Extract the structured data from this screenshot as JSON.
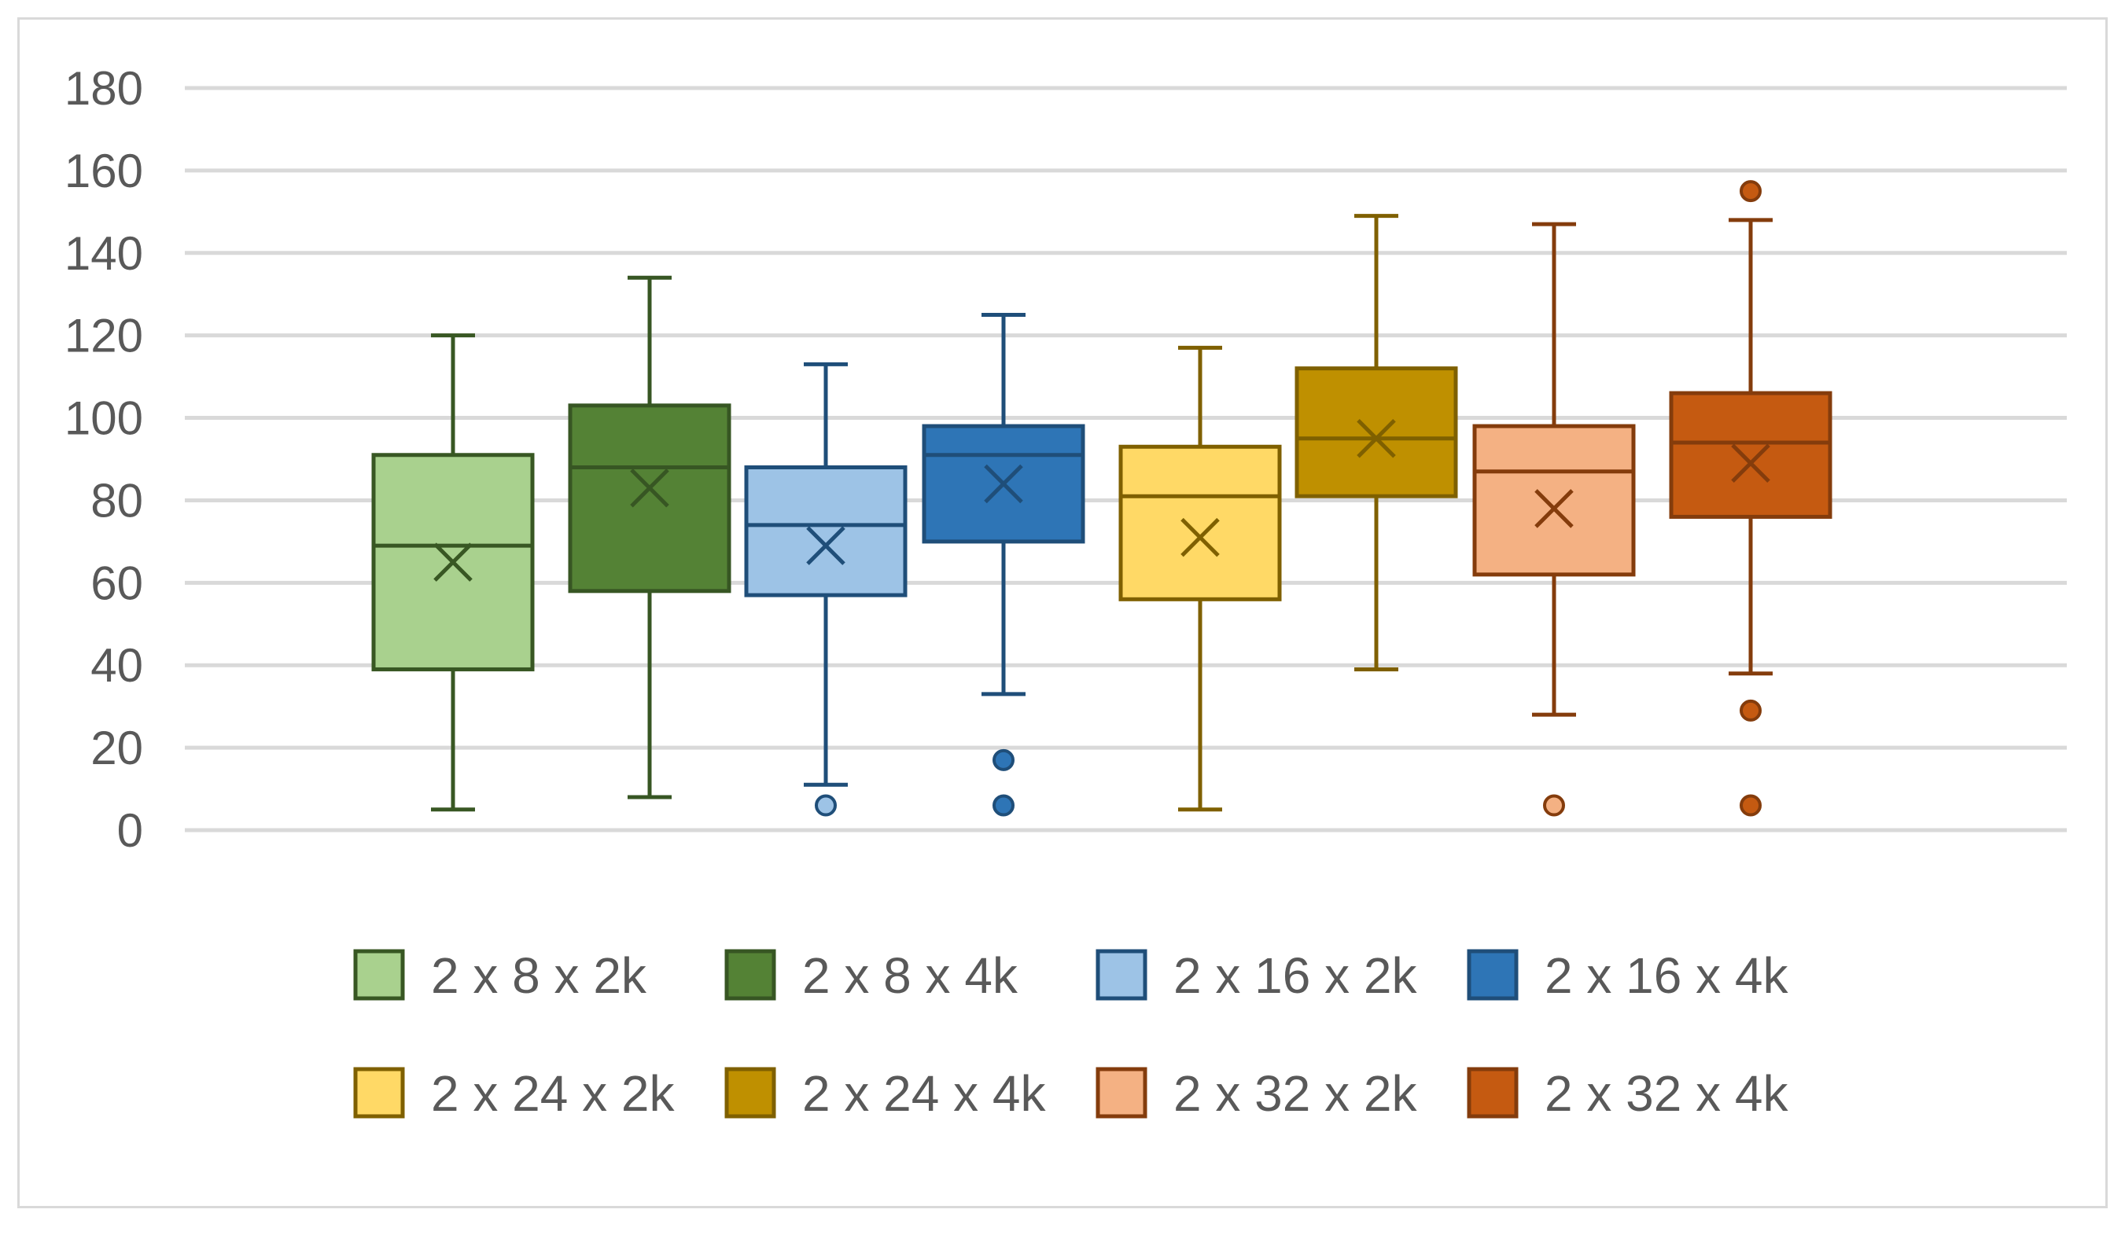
{
  "chart_data": {
    "type": "boxplot",
    "title": "",
    "xlabel": "",
    "ylabel": "",
    "ylim": [
      0,
      180
    ],
    "yticks": [
      0,
      20,
      40,
      60,
      80,
      100,
      120,
      140,
      160,
      180
    ],
    "ytick_labels": [
      "0",
      "20",
      "40",
      "60",
      "80",
      "100",
      "120",
      "140",
      "160",
      "180"
    ],
    "grid": true,
    "legend_position": "bottom",
    "series": [
      {
        "name": "2 x 8 x 2k",
        "fill": "#a9d18e",
        "stroke": "#385723",
        "min": 5,
        "q1": 39,
        "median": 69,
        "q3": 91,
        "max": 120,
        "mean": 65,
        "outliers": []
      },
      {
        "name": "2 x 8 x 4k",
        "fill": "#548235",
        "stroke": "#375623",
        "min": 8,
        "q1": 58,
        "median": 88,
        "q3": 103,
        "max": 134,
        "mean": 83,
        "outliers": []
      },
      {
        "name": "2 x 16 x 2k",
        "fill": "#9dc3e6",
        "stroke": "#1f4e79",
        "min": 11,
        "q1": 57,
        "median": 74,
        "q3": 88,
        "max": 113,
        "mean": 69,
        "outliers": [
          6
        ]
      },
      {
        "name": "2 x 16 x 4k",
        "fill": "#2e75b6",
        "stroke": "#1f4e79",
        "min": 33,
        "q1": 70,
        "median": 91,
        "q3": 98,
        "max": 125,
        "mean": 84,
        "outliers": [
          6,
          17
        ]
      },
      {
        "name": "2 x 24 x 2k",
        "fill": "#ffd966",
        "stroke": "#7f6000",
        "min": 5,
        "q1": 56,
        "median": 81,
        "q3": 93,
        "max": 117,
        "mean": 71,
        "outliers": []
      },
      {
        "name": "2 x 24 x 4k",
        "fill": "#bf9000",
        "stroke": "#7f6000",
        "min": 39,
        "q1": 81,
        "median": 95,
        "q3": 112,
        "max": 149,
        "mean": 95,
        "outliers": []
      },
      {
        "name": "2 x 32 x 2k",
        "fill": "#f4b183",
        "stroke": "#843c0c",
        "min": 28,
        "q1": 62,
        "median": 87,
        "q3": 98,
        "max": 147,
        "mean": 78,
        "outliers": [
          6
        ]
      },
      {
        "name": "2 x 32 x 4k",
        "fill": "#c55a11",
        "stroke": "#843c0c",
        "min": 38,
        "q1": 76,
        "median": 94,
        "q3": 106,
        "max": 148,
        "mean": 89,
        "outliers": [
          6,
          29,
          155
        ]
      }
    ]
  }
}
